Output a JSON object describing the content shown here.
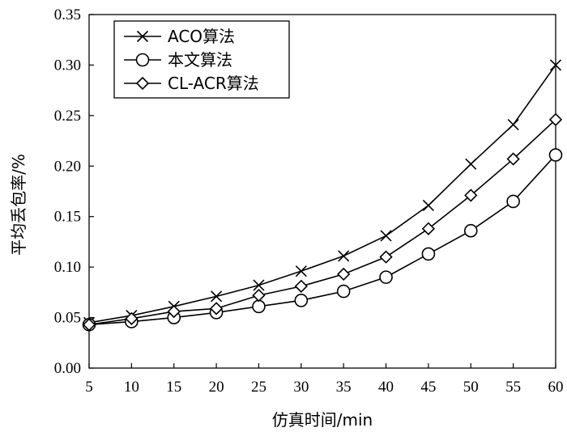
{
  "chart_data": {
    "type": "line",
    "title": "",
    "xlabel": "仿真时间/min",
    "ylabel": "平均丢包率/%",
    "x": [
      5,
      10,
      15,
      20,
      25,
      30,
      35,
      40,
      45,
      50,
      55,
      60
    ],
    "xlim": [
      5,
      60
    ],
    "ylim": [
      0,
      0.35
    ],
    "xticks": [
      "5",
      "10",
      "15",
      "20",
      "25",
      "30",
      "35",
      "40",
      "45",
      "50",
      "55",
      "60"
    ],
    "yticks": [
      "0.00",
      "0.05",
      "0.10",
      "0.15",
      "0.20",
      "0.25",
      "0.30",
      "0.35"
    ],
    "grid": false,
    "legend_position": "top-left",
    "series": [
      {
        "name": "ACO算法",
        "marker": "x",
        "values": [
          0.045,
          0.052,
          0.061,
          0.071,
          0.082,
          0.096,
          0.111,
          0.131,
          0.161,
          0.202,
          0.241,
          0.3
        ]
      },
      {
        "name": "本文算法",
        "marker": "circle",
        "values": [
          0.043,
          0.046,
          0.05,
          0.055,
          0.061,
          0.067,
          0.076,
          0.09,
          0.113,
          0.136,
          0.165,
          0.211
        ]
      },
      {
        "name": "CL-ACR算法",
        "marker": "diamond",
        "values": [
          0.043,
          0.049,
          0.056,
          0.059,
          0.072,
          0.081,
          0.093,
          0.11,
          0.138,
          0.171,
          0.207,
          0.246
        ]
      }
    ]
  }
}
